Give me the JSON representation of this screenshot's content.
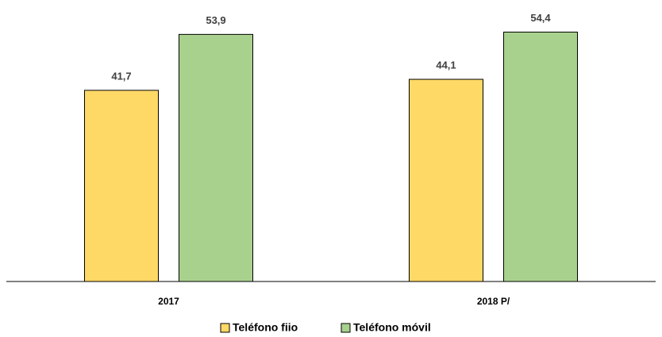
{
  "chart_data": {
    "type": "bar",
    "categories": [
      "2017",
      "2018 P/"
    ],
    "series": [
      {
        "name": "Teléfono fiio",
        "color": "#ffd966",
        "values": [
          41.7,
          44.1
        ],
        "value_labels": [
          "41,7",
          "44,1"
        ]
      },
      {
        "name": "Teléfono móvil",
        "color": "#a9d18e",
        "values": [
          53.9,
          54.4
        ],
        "value_labels": [
          "53,9",
          "54,4"
        ]
      }
    ],
    "ylim": [
      0,
      55
    ],
    "legend": "bottom"
  }
}
